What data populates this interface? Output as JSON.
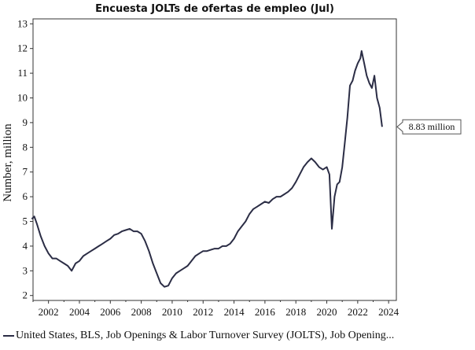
{
  "chart_data": {
    "type": "line",
    "title": "Encuesta JOLTs de ofertas de empleo (Jul)",
    "ylabel": "Number, million",
    "xlabel": "",
    "xlim": [
      2001.0,
      2024.5
    ],
    "ylim": [
      1.8,
      13.2
    ],
    "x_ticks": [
      2002,
      2004,
      2006,
      2008,
      2010,
      2012,
      2014,
      2016,
      2018,
      2020,
      2022,
      2024
    ],
    "x_tick_labels": [
      "2002",
      "2004",
      "2006",
      "2008",
      "2010",
      "2012",
      "2014",
      "2016",
      "2018",
      "2020",
      "2022",
      "2024"
    ],
    "y_ticks": [
      2,
      3,
      4,
      5,
      6,
      7,
      8,
      9,
      10,
      11,
      12,
      13
    ],
    "y_tick_labels": [
      "2",
      "3",
      "4",
      "5",
      "6",
      "7",
      "8",
      "9",
      "10",
      "11",
      "12",
      "13"
    ],
    "grid": false,
    "legend_position": "bottom",
    "line_color": "#2b2d45",
    "last_value_label": "8.83 million",
    "series": [
      {
        "name": "United States, BLS, Job Openings & Labor Turnover Survey (JOLTS), Job Opening...",
        "x": [
          2000.92,
          2001.08,
          2001.25,
          2001.5,
          2001.75,
          2002.0,
          2002.25,
          2002.5,
          2002.75,
          2003.0,
          2003.25,
          2003.5,
          2003.75,
          2004.0,
          2004.25,
          2004.5,
          2004.75,
          2005.0,
          2005.25,
          2005.5,
          2005.75,
          2006.0,
          2006.25,
          2006.5,
          2006.75,
          2007.0,
          2007.25,
          2007.5,
          2007.75,
          2008.0,
          2008.25,
          2008.5,
          2008.75,
          2009.0,
          2009.25,
          2009.5,
          2009.75,
          2010.0,
          2010.25,
          2010.5,
          2010.75,
          2011.0,
          2011.25,
          2011.5,
          2011.75,
          2012.0,
          2012.25,
          2012.5,
          2012.75,
          2013.0,
          2013.25,
          2013.5,
          2013.75,
          2014.0,
          2014.25,
          2014.5,
          2014.75,
          2015.0,
          2015.25,
          2015.5,
          2015.75,
          2016.0,
          2016.25,
          2016.5,
          2016.75,
          2017.0,
          2017.25,
          2017.5,
          2017.75,
          2018.0,
          2018.25,
          2018.5,
          2018.75,
          2019.0,
          2019.25,
          2019.5,
          2019.75,
          2020.0,
          2020.17,
          2020.33,
          2020.5,
          2020.67,
          2020.83,
          2021.0,
          2021.17,
          2021.33,
          2021.5,
          2021.67,
          2021.83,
          2022.0,
          2022.17,
          2022.25,
          2022.42,
          2022.58,
          2022.75,
          2022.92,
          2023.08,
          2023.25,
          2023.42,
          2023.58
        ],
        "values": [
          5.1,
          5.2,
          4.9,
          4.4,
          4.0,
          3.7,
          3.5,
          3.5,
          3.4,
          3.3,
          3.2,
          3.0,
          3.3,
          3.4,
          3.6,
          3.7,
          3.8,
          3.9,
          4.0,
          4.1,
          4.2,
          4.3,
          4.45,
          4.5,
          4.6,
          4.65,
          4.7,
          4.6,
          4.6,
          4.5,
          4.2,
          3.8,
          3.3,
          2.9,
          2.5,
          2.35,
          2.4,
          2.7,
          2.9,
          3.0,
          3.1,
          3.2,
          3.4,
          3.6,
          3.7,
          3.8,
          3.8,
          3.85,
          3.9,
          3.9,
          4.0,
          4.0,
          4.1,
          4.3,
          4.6,
          4.8,
          5.0,
          5.3,
          5.5,
          5.6,
          5.7,
          5.8,
          5.75,
          5.9,
          6.0,
          6.0,
          6.1,
          6.2,
          6.35,
          6.6,
          6.9,
          7.2,
          7.4,
          7.55,
          7.4,
          7.2,
          7.1,
          7.2,
          6.9,
          4.7,
          6.0,
          6.5,
          6.6,
          7.2,
          8.2,
          9.2,
          10.5,
          10.7,
          11.1,
          11.4,
          11.6,
          11.9,
          11.4,
          10.9,
          10.6,
          10.4,
          10.9,
          10.0,
          9.6,
          8.83
        ]
      }
    ]
  }
}
